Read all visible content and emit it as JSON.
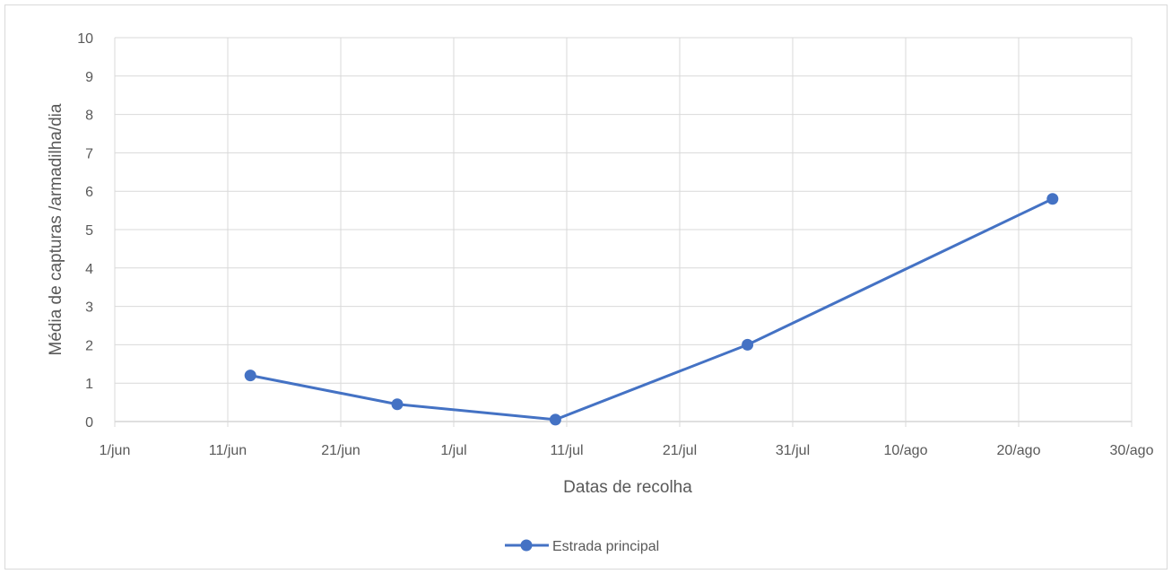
{
  "chart_data": {
    "type": "line",
    "title": "",
    "xlabel": "Datas de recolha",
    "ylabel": "Média de capturas /armadilha/dia",
    "x_ticks": [
      "1/jun",
      "11/jun",
      "21/jun",
      "1/jul",
      "11/jul",
      "21/jul",
      "31/jul",
      "10/ago",
      "20/ago",
      "30/ago"
    ],
    "y_ticks": [
      "0",
      "1",
      "2",
      "3",
      "4",
      "5",
      "6",
      "7",
      "8",
      "9",
      "10"
    ],
    "ylim": [
      0,
      10
    ],
    "xlim": [
      "2021-06-01",
      "2021-08-30"
    ],
    "grid": true,
    "legend_position": "bottom",
    "series": [
      {
        "name": "Estrada principal",
        "color": "#4472c4",
        "x": [
          "2021-06-13",
          "2021-06-26",
          "2021-07-10",
          "2021-07-27",
          "2021-08-23"
        ],
        "values": [
          1.2,
          0.45,
          0.05,
          2.0,
          5.8
        ]
      }
    ]
  }
}
